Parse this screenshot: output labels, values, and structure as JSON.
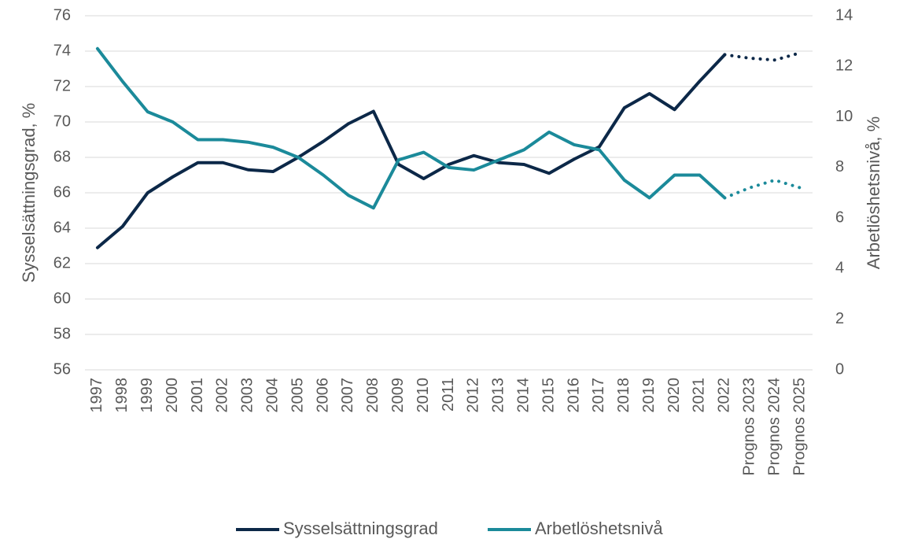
{
  "chart_data": {
    "type": "line",
    "categories": [
      "1997",
      "1998",
      "1999",
      "2000",
      "2001",
      "2002",
      "2003",
      "2004",
      "2005",
      "2006",
      "2007",
      "2008",
      "2009",
      "2010",
      "2011",
      "2012",
      "2013",
      "2014",
      "2015",
      "2016",
      "2017",
      "2018",
      "2019",
      "2020",
      "2021",
      "2022",
      "Prognos 2023",
      "Prognos 2024",
      "Prognos 2025"
    ],
    "series": [
      {
        "name": "Sysselsättningsgrad",
        "color": "#0c2848",
        "axis": "y",
        "values": [
          62.9,
          64.1,
          66.0,
          66.9,
          67.7,
          67.7,
          67.3,
          67.2,
          68.0,
          68.9,
          69.9,
          70.6,
          67.6,
          66.8,
          67.6,
          68.1,
          67.7,
          67.6,
          67.1,
          67.9,
          68.6,
          70.8,
          71.6,
          70.7,
          72.3,
          73.8,
          73.6,
          73.5,
          73.9
        ]
      },
      {
        "name": "Arbetlöshetsnivå",
        "color": "#1b8a9a",
        "axis": "y2",
        "values": [
          12.7,
          11.4,
          10.2,
          9.8,
          9.1,
          9.1,
          9.0,
          8.8,
          8.4,
          7.7,
          6.9,
          6.4,
          8.3,
          8.6,
          8.0,
          7.9,
          8.3,
          8.7,
          9.4,
          8.9,
          8.7,
          7.5,
          6.8,
          7.7,
          7.7,
          6.8,
          7.2,
          7.5,
          7.2
        ]
      }
    ],
    "forecast_from": 25,
    "y_label": "Sysselsättningsgrad, %",
    "y2_label": "Arbetlöshetsnivå, %",
    "ylim": [
      56,
      76
    ],
    "yticks": [
      56,
      58,
      60,
      62,
      64,
      66,
      68,
      70,
      72,
      74,
      76
    ],
    "y2lim": [
      0,
      14
    ],
    "y2ticks": [
      0,
      2,
      4,
      6,
      8,
      10,
      12,
      14
    ],
    "grid": true,
    "legend": "bottom"
  }
}
